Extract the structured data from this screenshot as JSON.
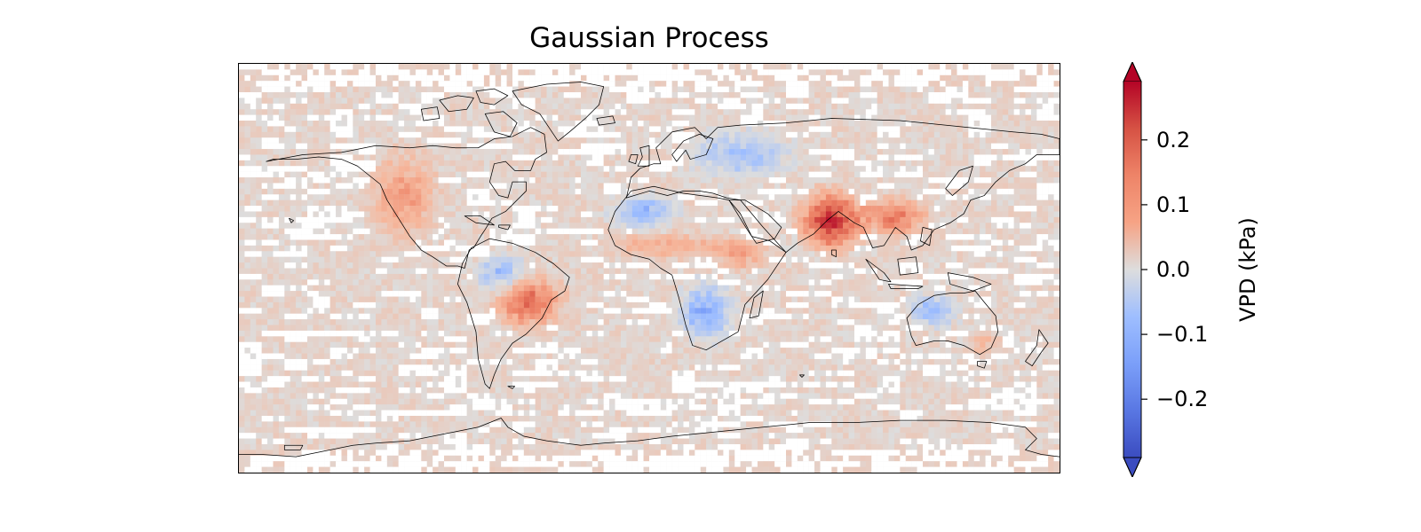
{
  "chart_data": {
    "type": "heatmap",
    "title": "Gaussian Process",
    "projection": "PlateCarree",
    "extent": {
      "lon": [
        -180,
        180
      ],
      "lat": [
        -90,
        90
      ]
    },
    "colormap": "coolwarm",
    "colorbar": {
      "label": "VPD (kPa)",
      "range": [
        -0.29,
        0.29
      ],
      "extend": "both",
      "ticks": [
        0.2,
        0.1,
        0.0,
        -0.1,
        -0.2
      ],
      "tick_labels": [
        "0.2",
        "0.1",
        "0.0",
        "−0.1",
        "−0.2"
      ]
    },
    "approximate_anomaly_regions": [
      {
        "region": "Indian subcontinent",
        "lon": [
          68,
          92
        ],
        "lat": [
          10,
          32
        ],
        "value": 0.25
      },
      {
        "region": "Indochina / South China",
        "lon": [
          95,
          120
        ],
        "lat": [
          15,
          30
        ],
        "value": 0.16
      },
      {
        "region": "Central South America",
        "lon": [
          -65,
          -40
        ],
        "lat": [
          -25,
          -5
        ],
        "value": 0.17
      },
      {
        "region": "Western North America",
        "lon": [
          -120,
          -95
        ],
        "lat": [
          15,
          48
        ],
        "value": 0.11
      },
      {
        "region": "Sahel",
        "lon": [
          -15,
          35
        ],
        "lat": [
          5,
          15
        ],
        "value": 0.09
      },
      {
        "region": "East Africa",
        "lon": [
          30,
          50
        ],
        "lat": [
          0,
          12
        ],
        "value": 0.1
      },
      {
        "region": "Southern Africa",
        "lon": [
          15,
          35
        ],
        "lat": [
          -30,
          -8
        ],
        "value": -0.11
      },
      {
        "region": "Northwest Africa",
        "lon": [
          -15,
          10
        ],
        "lat": [
          18,
          32
        ],
        "value": -0.08
      },
      {
        "region": "Europe / Western Russia",
        "lon": [
          20,
          60
        ],
        "lat": [
          40,
          60
        ],
        "value": -0.06
      },
      {
        "region": "Western Amazon",
        "lon": [
          -75,
          -55
        ],
        "lat": [
          -10,
          5
        ],
        "value": -0.07
      },
      {
        "region": "Northwest Australia",
        "lon": [
          115,
          135
        ],
        "lat": [
          -25,
          -12
        ],
        "value": -0.07
      },
      {
        "region": "Southeast Australia",
        "lon": [
          140,
          153
        ],
        "lat": [
          -38,
          -28
        ],
        "value": 0.07
      },
      {
        "region": "Mid-latitude oceans (background)",
        "value": 0.02
      },
      {
        "region": "Masked cells (no data)",
        "value": null
      }
    ]
  },
  "colors": {
    "cmap_low": "#3b4cc0",
    "cmap_mid": "#dddddd",
    "cmap_high": "#b40426",
    "masked": "#ffffff",
    "coastline": "#000000"
  }
}
